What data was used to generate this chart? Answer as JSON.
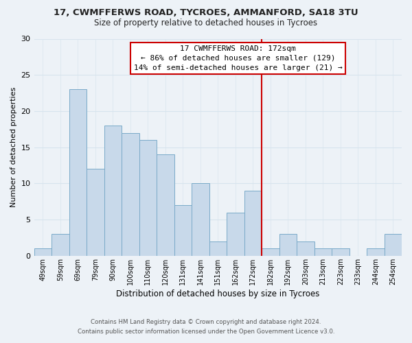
{
  "title": "17, CWMFFERWS ROAD, TYCROES, AMMANFORD, SA18 3TU",
  "subtitle": "Size of property relative to detached houses in Tycroes",
  "xlabel": "Distribution of detached houses by size in Tycroes",
  "ylabel": "Number of detached properties",
  "bar_labels": [
    "49sqm",
    "59sqm",
    "69sqm",
    "79sqm",
    "90sqm",
    "100sqm",
    "110sqm",
    "120sqm",
    "131sqm",
    "141sqm",
    "151sqm",
    "162sqm",
    "172sqm",
    "182sqm",
    "192sqm",
    "203sqm",
    "213sqm",
    "223sqm",
    "233sqm",
    "244sqm",
    "254sqm"
  ],
  "bar_values": [
    1,
    3,
    23,
    12,
    18,
    17,
    16,
    14,
    7,
    10,
    2,
    6,
    9,
    1,
    3,
    2,
    1,
    1,
    0,
    1,
    3
  ],
  "bar_color": "#c8d9ea",
  "bar_edge_color": "#7aaac8",
  "highlight_index": 12,
  "highlight_line_color": "#cc0000",
  "ylim": [
    0,
    30
  ],
  "yticks": [
    0,
    5,
    10,
    15,
    20,
    25,
    30
  ],
  "annotation_title": "17 CWMFFERWS ROAD: 172sqm",
  "annotation_line1": "← 86% of detached houses are smaller (129)",
  "annotation_line2": "14% of semi-detached houses are larger (21) →",
  "annotation_box_color": "#ffffff",
  "annotation_box_edge": "#cc0000",
  "footnote1": "Contains HM Land Registry data © Crown copyright and database right 2024.",
  "footnote2": "Contains public sector information licensed under the Open Government Licence v3.0.",
  "grid_color": "#d8e4ee",
  "background_color": "#edf2f7",
  "title_fontsize": 9.5,
  "subtitle_fontsize": 8.5
}
